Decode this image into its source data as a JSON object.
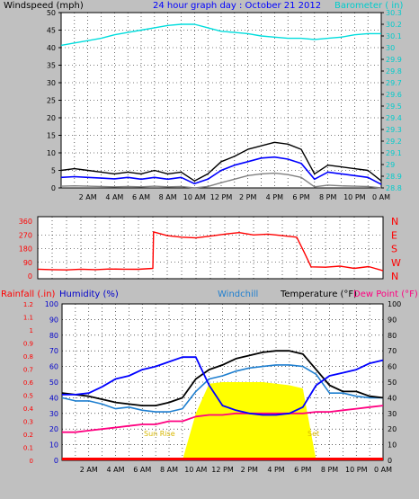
{
  "colors": {
    "page_bg": "#ffffff",
    "panel_bg": "#c0c0c0",
    "plot_bg": "#ffffff",
    "grid": "#000000",
    "blue": "#0000ff",
    "cyan": "#00dddd",
    "red": "#ff0000",
    "black": "#000000",
    "gray": "#808080",
    "yellow": "#ffff00",
    "magenta": "#ff0080",
    "windchill": "#1e7fd0",
    "humidity": "#0000cc",
    "sun_text": "#d8b800"
  },
  "x_ticks": [
    "2 AM",
    "4 AM",
    "6 AM",
    "8 AM",
    "10 AM",
    "12 PM",
    "2 PM",
    "4 PM",
    "6 PM",
    "8 PM",
    "10 PM",
    "0 AM"
  ],
  "chart_data": [
    {
      "type": "line",
      "title": "24 hour graph day : October 21 2012",
      "ylabel_left": "Windspeed (mph)",
      "ylabel_right": "Barometer ( in)",
      "left_ticks": [
        "0",
        "5",
        "10",
        "15",
        "20",
        "25",
        "30",
        "35",
        "40",
        "45",
        "50"
      ],
      "right_ticks": [
        "28.8",
        "28.9",
        "29",
        "29.1",
        "29.2",
        "29.3",
        "29.4",
        "29.5",
        "29.6",
        "29.7",
        "29.8",
        "29.9",
        "30",
        "30.1",
        "30.2",
        "30.3"
      ],
      "ylim_left": [
        0,
        50
      ],
      "ylim_right": [
        28.8,
        30.3
      ],
      "x": [
        0,
        1,
        2,
        3,
        4,
        5,
        6,
        7,
        8,
        9,
        10,
        11,
        12,
        13,
        14,
        15,
        16,
        17,
        18,
        19,
        20,
        21,
        22,
        23,
        24
      ],
      "series": [
        {
          "key": "gust",
          "values": [
            5,
            5.5,
            5,
            4.5,
            4,
            4.5,
            4,
            5,
            4,
            4.5,
            2,
            4,
            7.5,
            9,
            11,
            12,
            13,
            12.5,
            11,
            4,
            6.5,
            6,
            5.5,
            5,
            2
          ]
        },
        {
          "key": "wind",
          "values": [
            3,
            3.2,
            3,
            2.8,
            2.6,
            3,
            2.5,
            3,
            2.5,
            3,
            1.2,
            2.5,
            5,
            6.5,
            7.5,
            8.5,
            8.8,
            8.2,
            7,
            2.5,
            4.5,
            4,
            3.5,
            3,
            1
          ]
        },
        {
          "key": "low",
          "values": [
            0.5,
            0.6,
            0.5,
            0.4,
            0.3,
            0.4,
            0.3,
            0.5,
            0.3,
            0.4,
            0,
            0.4,
            1.5,
            2.5,
            3.5,
            4,
            4.2,
            3.8,
            3,
            0.3,
            0.8,
            0.6,
            0.5,
            0.4,
            0
          ]
        },
        {
          "key": "barometer",
          "values": [
            30.02,
            30.04,
            30.06,
            30.08,
            30.11,
            30.13,
            30.15,
            30.17,
            30.19,
            30.2,
            30.2,
            30.17,
            30.14,
            30.13,
            30.12,
            30.1,
            30.09,
            30.08,
            30.08,
            30.07,
            30.08,
            30.09,
            30.11,
            30.12,
            30.12
          ]
        }
      ]
    },
    {
      "type": "line",
      "ylabel_right": "",
      "left_ticks": [
        "0",
        "90",
        "180",
        "270",
        "360"
      ],
      "right_ticks": [
        "N",
        "W",
        "S",
        "E",
        "N"
      ],
      "ylim": [
        0,
        360
      ],
      "x": [
        0,
        1,
        2,
        3,
        4,
        5,
        6,
        7,
        8,
        8.05,
        9,
        10,
        11,
        12,
        13,
        14,
        15,
        16,
        17,
        18,
        18.5,
        19,
        20,
        21,
        22,
        23,
        24
      ],
      "series": [
        {
          "key": "direction",
          "values": [
            45,
            42,
            40,
            45,
            42,
            46,
            45,
            44,
            50,
            290,
            265,
            255,
            250,
            262,
            275,
            285,
            270,
            275,
            265,
            255,
            160,
            60,
            58,
            65,
            50,
            62,
            35
          ]
        }
      ]
    },
    {
      "type": "line",
      "ylabel_rainfall": "Rainfall (.in)",
      "ylabel_humidity": "Humidity (%)",
      "label_windchill": "Windchill",
      "label_temperature": "Temperature (°F)",
      "label_dewpoint": "Dew Point (°F)",
      "rain_ticks": [
        "0",
        "0.1",
        "0.2",
        "0.3",
        "0.4",
        "0.5",
        "0.6",
        "0.7",
        "0.8",
        "0.9",
        "1",
        "1.1",
        "1.2"
      ],
      "humidity_ticks": [
        "0",
        "10",
        "20",
        "30",
        "40",
        "50",
        "60",
        "70",
        "80",
        "90",
        "100"
      ],
      "temp_ticks": [
        "0",
        "10",
        "20",
        "30",
        "40",
        "50",
        "60",
        "70",
        "80",
        "90",
        "100"
      ],
      "ylim": [
        0,
        100
      ],
      "annotations": [
        "Sun Rise",
        "Set"
      ],
      "x": [
        0,
        1,
        2,
        3,
        4,
        5,
        6,
        7,
        8,
        9,
        10,
        11,
        12,
        13,
        14,
        15,
        16,
        17,
        18,
        19,
        20,
        21,
        22,
        23,
        24
      ],
      "series": [
        {
          "key": "humidity",
          "values": [
            42,
            42,
            43,
            47,
            52,
            54,
            58,
            60,
            63,
            66,
            66,
            48,
            35,
            32,
            30,
            29,
            29,
            30,
            34,
            48,
            54,
            56,
            58,
            62,
            64
          ]
        },
        {
          "key": "temperature",
          "values": [
            43,
            42,
            41,
            39,
            37,
            36,
            35,
            35,
            37,
            40,
            52,
            58,
            61,
            65,
            67,
            69,
            70,
            70,
            68,
            58,
            48,
            44,
            44,
            41,
            40
          ]
        },
        {
          "key": "windchill",
          "values": [
            40,
            38,
            38,
            36,
            33,
            34,
            32,
            31,
            31,
            33,
            44,
            52,
            54,
            57,
            59,
            60,
            61,
            61,
            60,
            55,
            43,
            43,
            41,
            40,
            40
          ]
        },
        {
          "key": "dewpoint",
          "values": [
            18,
            18,
            19,
            20,
            21,
            22,
            23,
            23,
            25,
            25,
            28,
            29,
            29,
            30,
            30,
            30,
            30,
            30,
            30,
            31,
            31,
            32,
            33,
            34,
            35
          ]
        },
        {
          "key": "solar",
          "values": [
            0,
            0,
            0,
            0,
            0,
            0,
            0,
            0,
            0,
            0,
            30,
            49,
            50,
            50,
            50,
            50,
            49,
            48,
            46,
            0,
            0,
            0,
            0,
            0,
            0
          ]
        },
        {
          "key": "rainfall",
          "values": [
            0,
            0,
            0,
            0,
            0,
            0,
            0,
            0,
            0,
            0,
            0,
            0,
            0,
            0,
            0,
            0,
            0,
            0,
            0,
            0,
            0,
            0,
            0,
            0,
            0
          ]
        }
      ]
    }
  ]
}
